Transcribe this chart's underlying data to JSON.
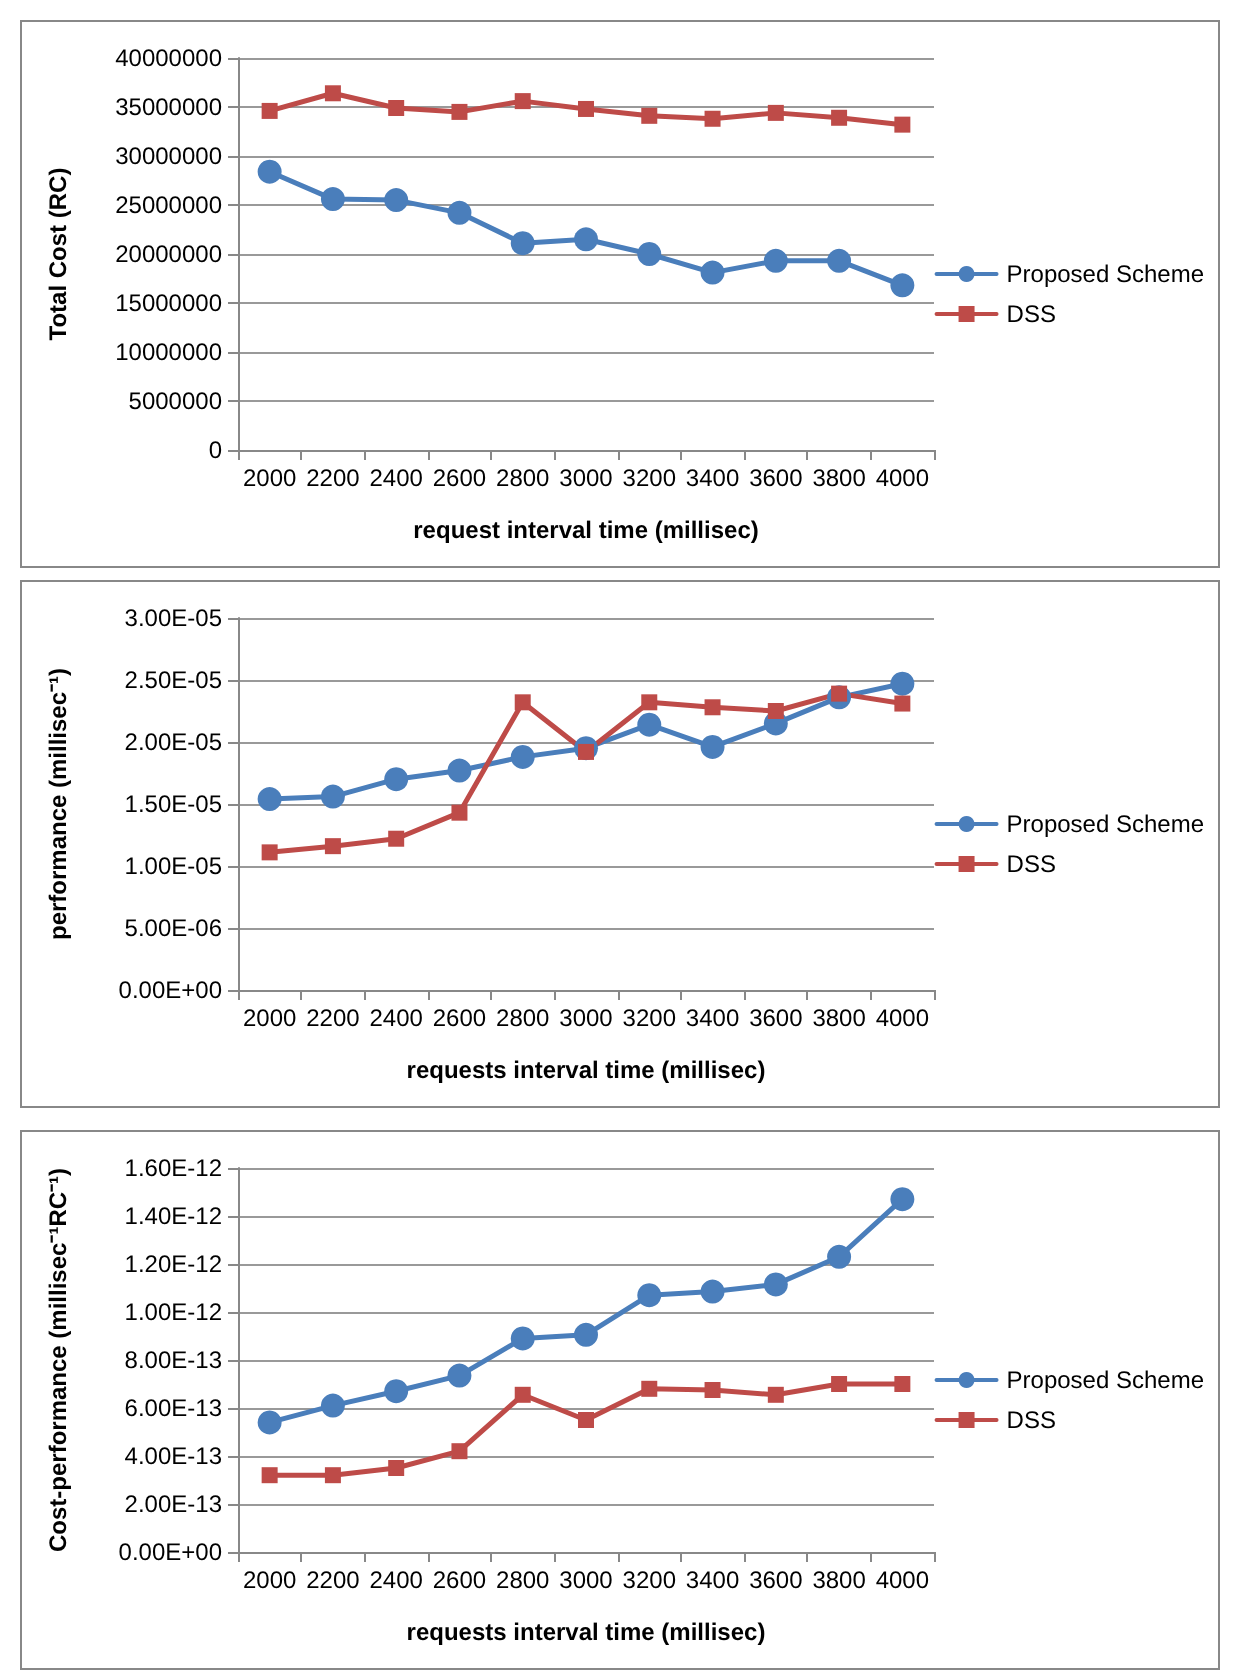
{
  "chart_data": [
    {
      "type": "line",
      "xlabel": "request interval time (millisec)",
      "ylabel": "Total Cost (RC)",
      "categories": [
        "2000",
        "2200",
        "2400",
        "2600",
        "2800",
        "3000",
        "3200",
        "3400",
        "3600",
        "3800",
        "4000"
      ],
      "series": [
        {
          "name": "Proposed Scheme",
          "color": "#4a7ebb",
          "marker": "circle",
          "values": [
            28400000,
            25600000,
            25500000,
            24200000,
            21100000,
            21500000,
            20000000,
            18100000,
            19300000,
            19300000,
            16800000
          ]
        },
        {
          "name": "DSS",
          "color": "#be4b48",
          "marker": "square",
          "values": [
            34600000,
            36400000,
            34900000,
            34500000,
            35600000,
            34800000,
            34100000,
            33800000,
            34400000,
            33900000,
            33200000
          ]
        }
      ],
      "ylim": [
        0,
        40000000
      ],
      "yticks": [
        0,
        5000000,
        10000000,
        15000000,
        20000000,
        25000000,
        30000000,
        35000000,
        40000000
      ],
      "grid": "y",
      "legend": "right",
      "line_style": "solid"
    },
    {
      "type": "line",
      "xlabel": "requests interval time (millisec)",
      "ylabel": "performance (millisec⁻¹)",
      "categories": [
        "2000",
        "2200",
        "2400",
        "2600",
        "2800",
        "3000",
        "3200",
        "3400",
        "3600",
        "3800",
        "4000"
      ],
      "series": [
        {
          "name": "Proposed Scheme",
          "color": "#4a7ebb",
          "marker": "circle",
          "values": [
            1.54e-05,
            1.56e-05,
            1.7e-05,
            1.77e-05,
            1.88e-05,
            1.95e-05,
            2.14e-05,
            1.96e-05,
            2.15e-05,
            2.36e-05,
            2.47e-05
          ]
        },
        {
          "name": "DSS",
          "color": "#be4b48",
          "marker": "square",
          "values": [
            1.11e-05,
            1.16e-05,
            1.22e-05,
            1.43e-05,
            2.32e-05,
            1.92e-05,
            2.32e-05,
            2.28e-05,
            2.25e-05,
            2.39e-05,
            2.31e-05
          ]
        }
      ],
      "ylim": [
        0,
        3e-05
      ],
      "yticks": [
        {
          "value": 0,
          "label": "0.00E+00"
        },
        {
          "value": 5e-06,
          "label": "5.00E-06"
        },
        {
          "value": 1e-05,
          "label": "1.00E-05"
        },
        {
          "value": 1.5e-05,
          "label": "1.50E-05"
        },
        {
          "value": 2e-05,
          "label": "2.00E-05"
        },
        {
          "value": 2.5e-05,
          "label": "2.50E-05"
        },
        {
          "value": 3e-05,
          "label": "3.00E-05"
        }
      ],
      "grid": "y",
      "legend": "right",
      "line_style": "solid"
    },
    {
      "type": "line",
      "xlabel": "requests interval time (millisec)",
      "ylabel": "Cost-performance (millisec⁻¹RC⁻¹)",
      "categories": [
        "2000",
        "2200",
        "2400",
        "2600",
        "2800",
        "3000",
        "3200",
        "3400",
        "3600",
        "3800",
        "4000"
      ],
      "series": [
        {
          "name": "Proposed Scheme",
          "color": "#4a7ebb",
          "marker": "circle",
          "values": [
            5.4e-13,
            6.1e-13,
            6.7e-13,
            7.35e-13,
            8.9e-13,
            9.05e-13,
            1.07e-12,
            1.085e-12,
            1.115e-12,
            1.23e-12,
            1.47e-12
          ]
        },
        {
          "name": "DSS",
          "color": "#be4b48",
          "marker": "square",
          "values": [
            3.2e-13,
            3.2e-13,
            3.5e-13,
            4.2e-13,
            6.55e-13,
            5.5e-13,
            6.8e-13,
            6.75e-13,
            6.55e-13,
            7e-13,
            7e-13
          ]
        }
      ],
      "ylim": [
        0,
        1.6e-12
      ],
      "yticks": [
        {
          "value": 0,
          "label": "0.00E+00"
        },
        {
          "value": 2e-13,
          "label": "2.00E-13"
        },
        {
          "value": 4e-13,
          "label": "4.00E-13"
        },
        {
          "value": 6e-13,
          "label": "6.00E-13"
        },
        {
          "value": 8e-13,
          "label": "8.00E-13"
        },
        {
          "value": 1e-12,
          "label": "1.00E-12"
        },
        {
          "value": 1.2e-12,
          "label": "1.20E-12"
        },
        {
          "value": 1.4e-12,
          "label": "1.40E-12"
        },
        {
          "value": 1.6e-12,
          "label": "1.60E-12"
        }
      ],
      "grid": "y",
      "legend": "right",
      "line_style": "solid"
    }
  ]
}
